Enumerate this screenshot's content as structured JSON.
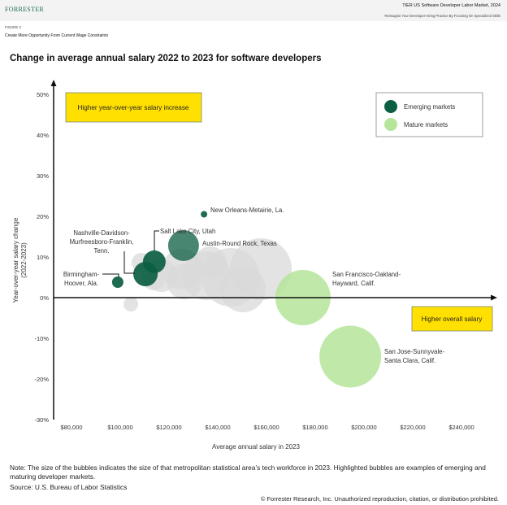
{
  "header": {
    "logo": "FORRESTER",
    "report_title": "TIER US Software Developer Labor Market, 2024",
    "report_subtitle": "Reimagine Your Developer Hiring Practice By Focusing On Specialized Skills",
    "figure_label": "FIGURE 3",
    "figure_title": "Create More Opportunity From Current Wage Constraints"
  },
  "chart_data": {
    "type": "scatter",
    "subtype": "bubble",
    "title": "Change in average annual salary 2022 to 2023 for software developers",
    "xlabel": "Average annual salary in 2023",
    "ylabel": "Year-over-year salary change (2022-2023)",
    "xlim": [
      80000,
      240000
    ],
    "ylim": [
      -30,
      50
    ],
    "x_ticks": [
      "$80,000",
      "$100,000",
      "$120,000",
      "$140,000",
      "$160,000",
      "$180,000",
      "$200,000",
      "$220,000",
      "$240,000"
    ],
    "x_tick_values": [
      80000,
      100000,
      120000,
      140000,
      160000,
      180000,
      200000,
      220000,
      240000
    ],
    "y_ticks": [
      "50%",
      "40%",
      "30%",
      "20%",
      "10%",
      "0%",
      "-10%",
      "-20%",
      "-30%"
    ],
    "y_tick_values": [
      50,
      40,
      30,
      20,
      10,
      0,
      -10,
      -20,
      -30
    ],
    "grid": false,
    "legend_position": "top-right",
    "colors": {
      "emerging": "#0b5e42",
      "mature": "#b5e59a",
      "other": "#d9d9d9",
      "callout_box": "#ffe000"
    },
    "series": [
      {
        "name": "Emerging markets",
        "color": "#0b5e42",
        "points": [
          {
            "label": "New Orleans-Metairie, La.",
            "x": 141700,
            "y": 20.5,
            "size": 4
          },
          {
            "label": "Salt Lake City, Utah",
            "x": 121300,
            "y": 8.8,
            "size": 14
          },
          {
            "label": "Austin-Round Rock, Texas",
            "x": 133300,
            "y": 12.8,
            "size": 19
          },
          {
            "label": "Nashville-Davidson-Murfreesboro-Franklin, Tenn.",
            "x": 117700,
            "y": 5.8,
            "size": 15
          },
          {
            "label": "Birmingham-Hoover, Ala.",
            "x": 106300,
            "y": 3.8,
            "size": 7
          }
        ]
      },
      {
        "name": "Mature markets",
        "color": "#b5e59a",
        "points": [
          {
            "label": "San Francisco-Oakland-Hayward, Calif.",
            "x": 182300,
            "y": 0,
            "size": 34
          },
          {
            "label": "San Jose-Sunnyvale-Santa Clara, Calif.",
            "x": 201700,
            "y": -14.5,
            "size": 38
          }
        ]
      },
      {
        "color": "#d9d9d9",
        "points": [
          {
            "x": 111700,
            "y": -1.6,
            "size": 9
          },
          {
            "x": 116000,
            "y": 8.6,
            "size": 12
          },
          {
            "x": 121000,
            "y": 4.6,
            "size": 14
          },
          {
            "x": 124300,
            "y": 5.4,
            "size": 20
          },
          {
            "x": 132700,
            "y": 7.0,
            "size": 25
          },
          {
            "x": 133700,
            "y": 4.0,
            "size": 22
          },
          {
            "x": 142700,
            "y": 5.4,
            "size": 30
          },
          {
            "x": 144300,
            "y": 8.6,
            "size": 20
          },
          {
            "x": 152700,
            "y": 5.0,
            "size": 36
          },
          {
            "x": 157700,
            "y": 2.0,
            "size": 28
          },
          {
            "x": 165000,
            "y": 7.0,
            "size": 38
          }
        ]
      }
    ],
    "annotations": {
      "top_left": "Higher year-over-year salary increase",
      "right": "Higher overall salary"
    },
    "labels": {
      "new_orleans": "New Orleans-Metairie, La.",
      "salt_lake": "Salt Lake City, Utah",
      "austin": "Austin-Round Rock, Texas",
      "nashville": [
        "Nashville-Davidson-",
        "Murfreesboro-Franklin,",
        "Tenn."
      ],
      "birmingham": [
        "Birmingham-",
        "Hoover, Ala."
      ],
      "san_francisco": [
        "San Francisco-Oakland-",
        "Hayward, Calif."
      ],
      "san_jose": [
        "San Jose-Sunnyvale-",
        "Santa Clara, Calif."
      ]
    },
    "legend": [
      "Emerging markets",
      "Mature markets"
    ]
  },
  "footer": {
    "note": "Note: The size of the bubbles indicates the size of that metropolitan statistical area’s tech workforce in 2023. Highlighted bubbles are examples of emerging and maturing developer markets.",
    "source": "Source: U.S. Bureau of Labor Statistics",
    "copyright": "© Forrester Research, Inc. Unauthorized reproduction, citation, or distribution prohibited."
  }
}
